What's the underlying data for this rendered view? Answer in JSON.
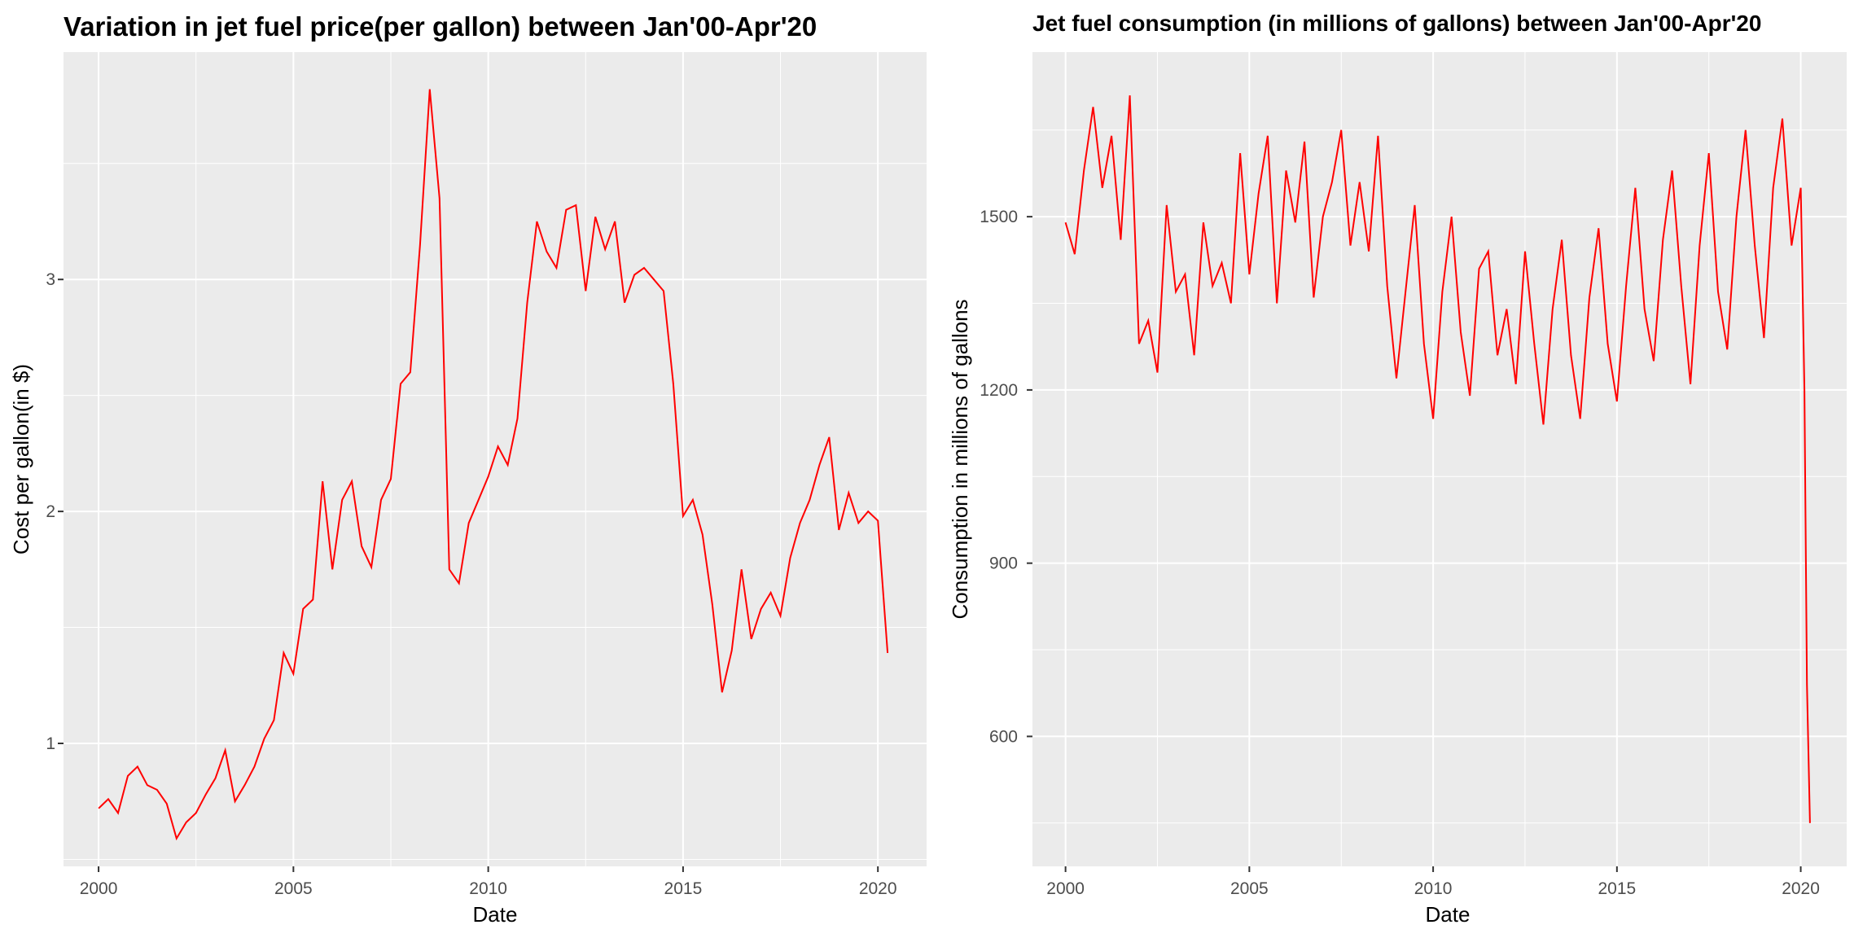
{
  "chart_data": [
    {
      "type": "line",
      "title": "Variation in jet fuel price(per gallon) between Jan'00-Apr'20",
      "xlabel": "Date",
      "ylabel": "Cost per gallon(in $)",
      "x_ticks": [
        "2000",
        "2005",
        "2010",
        "2015",
        "2020"
      ],
      "y_ticks": [
        "1",
        "2",
        "3"
      ],
      "xlim": [
        1999.1,
        2021.25
      ],
      "ylim": [
        0.47,
        3.98
      ],
      "grid": true,
      "background": "#ebebeb",
      "line_color": "#ff0000",
      "series": [
        {
          "x": [
            2000.0,
            2000.25,
            2000.5,
            2000.75,
            2001.0,
            2001.25,
            2001.5,
            2001.75,
            2002.0,
            2002.25,
            2002.5,
            2002.75,
            2003.0,
            2003.25,
            2003.5,
            2003.75,
            2004.0,
            2004.25,
            2004.5,
            2004.75,
            2005.0,
            2005.25,
            2005.5,
            2005.75,
            2006.0,
            2006.25,
            2006.5,
            2006.75,
            2007.0,
            2007.25,
            2007.5,
            2007.75,
            2008.0,
            2008.25,
            2008.5,
            2008.75,
            2009.0,
            2009.25,
            2009.5,
            2009.75,
            2010.0,
            2010.25,
            2010.5,
            2010.75,
            2011.0,
            2011.25,
            2011.5,
            2011.75,
            2012.0,
            2012.25,
            2012.5,
            2012.75,
            2013.0,
            2013.25,
            2013.5,
            2013.75,
            2014.0,
            2014.25,
            2014.5,
            2014.75,
            2015.0,
            2015.25,
            2015.5,
            2015.75,
            2016.0,
            2016.25,
            2016.5,
            2016.75,
            2017.0,
            2017.25,
            2017.5,
            2017.75,
            2018.0,
            2018.25,
            2018.5,
            2018.75,
            2019.0,
            2019.25,
            2019.5,
            2019.75,
            2020.0,
            2020.25
          ],
          "y": [
            0.72,
            0.76,
            0.7,
            0.86,
            0.9,
            0.82,
            0.8,
            0.74,
            0.59,
            0.66,
            0.7,
            0.78,
            0.85,
            0.97,
            0.75,
            0.82,
            0.9,
            1.02,
            1.1,
            1.39,
            1.3,
            1.58,
            1.62,
            2.13,
            1.75,
            2.05,
            2.13,
            1.85,
            1.76,
            2.05,
            2.14,
            2.55,
            2.6,
            3.15,
            3.82,
            3.35,
            1.75,
            1.69,
            1.95,
            2.05,
            2.15,
            2.28,
            2.2,
            2.4,
            2.9,
            3.25,
            3.12,
            3.05,
            3.3,
            3.32,
            2.95,
            3.27,
            3.13,
            3.25,
            2.9,
            3.02,
            3.05,
            3.0,
            2.95,
            2.55,
            1.98,
            2.05,
            1.9,
            1.6,
            1.22,
            1.4,
            1.75,
            1.45,
            1.58,
            1.65,
            1.55,
            1.8,
            1.95,
            2.05,
            2.2,
            2.32,
            1.92,
            2.08,
            1.95,
            2.0,
            1.96,
            1.39
          ]
        }
      ]
    },
    {
      "type": "line",
      "title": "Jet fuel consumption (in millions of gallons) between Jan'00-Apr'20",
      "xlabel": "Date",
      "ylabel": "Consumption in millions of gallons",
      "x_ticks": [
        "2000",
        "2005",
        "2010",
        "2015",
        "2020"
      ],
      "y_ticks": [
        "600",
        "900",
        "1200",
        "1500"
      ],
      "xlim": [
        1999.1,
        2021.25
      ],
      "ylim": [
        375,
        1785
      ],
      "grid": true,
      "background": "#ebebeb",
      "line_color": "#ff0000",
      "series": [
        {
          "x": [
            2000.0,
            2000.25,
            2000.5,
            2000.75,
            2001.0,
            2001.25,
            2001.5,
            2001.75,
            2002.0,
            2002.25,
            2002.5,
            2002.75,
            2003.0,
            2003.25,
            2003.5,
            2003.75,
            2004.0,
            2004.25,
            2004.5,
            2004.75,
            2005.0,
            2005.25,
            2005.5,
            2005.75,
            2006.0,
            2006.25,
            2006.5,
            2006.75,
            2007.0,
            2007.25,
            2007.5,
            2007.75,
            2008.0,
            2008.25,
            2008.5,
            2008.75,
            2009.0,
            2009.25,
            2009.5,
            2009.75,
            2010.0,
            2010.25,
            2010.5,
            2010.75,
            2011.0,
            2011.25,
            2011.5,
            2011.75,
            2012.0,
            2012.25,
            2012.5,
            2012.75,
            2013.0,
            2013.25,
            2013.5,
            2013.75,
            2014.0,
            2014.25,
            2014.5,
            2014.75,
            2015.0,
            2015.25,
            2015.5,
            2015.75,
            2016.0,
            2016.25,
            2016.5,
            2016.75,
            2017.0,
            2017.25,
            2017.5,
            2017.75,
            2018.0,
            2018.25,
            2018.5,
            2018.75,
            2019.0,
            2019.25,
            2019.5,
            2019.75,
            2020.0,
            2020.1,
            2020.17,
            2020.25
          ],
          "y": [
            1490,
            1435,
            1580,
            1690,
            1550,
            1640,
            1460,
            1710,
            1280,
            1320,
            1230,
            1520,
            1370,
            1400,
            1260,
            1490,
            1380,
            1420,
            1350,
            1610,
            1400,
            1540,
            1640,
            1350,
            1580,
            1490,
            1630,
            1360,
            1500,
            1560,
            1650,
            1450,
            1560,
            1440,
            1640,
            1380,
            1220,
            1370,
            1520,
            1280,
            1150,
            1370,
            1500,
            1300,
            1190,
            1410,
            1440,
            1260,
            1340,
            1210,
            1440,
            1280,
            1140,
            1340,
            1460,
            1260,
            1150,
            1360,
            1480,
            1280,
            1180,
            1380,
            1550,
            1340,
            1250,
            1460,
            1580,
            1380,
            1210,
            1450,
            1610,
            1370,
            1270,
            1500,
            1650,
            1450,
            1290,
            1550,
            1670,
            1450,
            1550,
            1200,
            690,
            450
          ]
        }
      ]
    }
  ]
}
